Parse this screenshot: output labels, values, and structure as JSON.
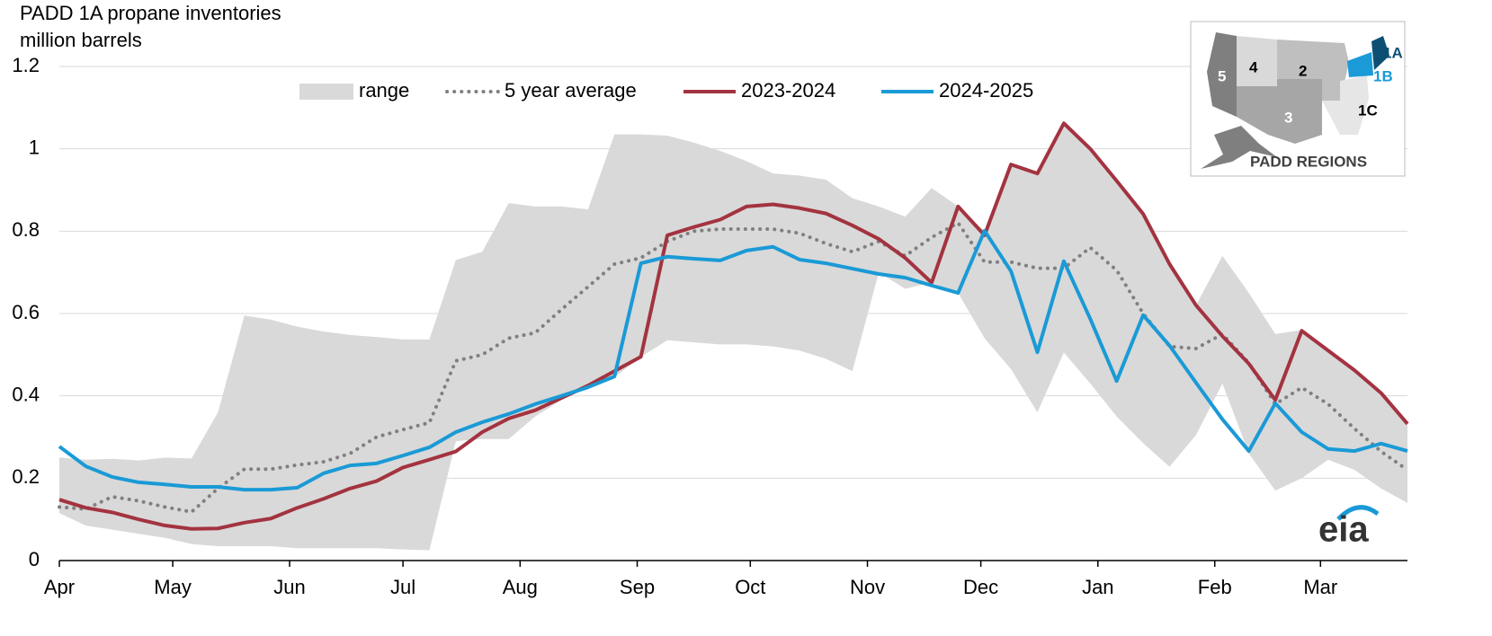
{
  "chart_data": {
    "type": "line",
    "title": "PADD 1A propane inventories",
    "y_label": "million barrels",
    "x": [
      0,
      1,
      2,
      3,
      4,
      5,
      6,
      7,
      8,
      9,
      10,
      11,
      12,
      13,
      14,
      15,
      16,
      17,
      18,
      19,
      20,
      21,
      22,
      23,
      24,
      25,
      26,
      27,
      28,
      29,
      30,
      31,
      32,
      33,
      34,
      35,
      36,
      37,
      38,
      39,
      40,
      41,
      42,
      43,
      44,
      45,
      46,
      47,
      48,
      49,
      50,
      51
    ],
    "xlim": [
      0,
      51
    ],
    "xticks": [
      {
        "value": 0,
        "label": "Apr"
      },
      {
        "value": 4.29,
        "label": "May"
      },
      {
        "value": 8.71,
        "label": "Jun"
      },
      {
        "value": 13,
        "label": "Jul"
      },
      {
        "value": 17.43,
        "label": "Aug"
      },
      {
        "value": 21.86,
        "label": "Sep"
      },
      {
        "value": 26.14,
        "label": "Oct"
      },
      {
        "value": 30.57,
        "label": "Nov"
      },
      {
        "value": 34.86,
        "label": "Dec"
      },
      {
        "value": 39.29,
        "label": "Jan"
      },
      {
        "value": 43.71,
        "label": "Feb"
      },
      {
        "value": 47.71,
        "label": "Mar"
      }
    ],
    "ylim": [
      0,
      1.2
    ],
    "yticks": [
      0,
      0.2,
      0.4,
      0.6,
      0.8,
      1,
      1.2
    ],
    "grid": true,
    "legend": "top",
    "range": {
      "name": "range",
      "color": "#d9d9d9",
      "low": [
        0.115,
        0.085,
        0.075,
        0.065,
        0.055,
        0.04,
        0.035,
        0.035,
        0.035,
        0.03,
        0.03,
        0.03,
        0.03,
        0.027,
        0.025,
        0.29,
        0.295,
        0.295,
        0.35,
        0.39,
        0.42,
        0.445,
        0.495,
        0.535,
        0.53,
        0.525,
        0.525,
        0.52,
        0.51,
        0.49,
        0.46,
        0.7,
        0.66,
        0.675,
        0.65,
        0.54,
        0.465,
        0.36,
        0.505,
        0.43,
        0.35,
        0.285,
        0.228,
        0.305,
        0.43,
        0.26,
        0.17,
        0.2,
        0.245,
        0.22,
        0.175,
        0.14
      ],
      "high": [
        0.25,
        0.245,
        0.247,
        0.243,
        0.25,
        0.248,
        0.36,
        0.595,
        0.585,
        0.568,
        0.556,
        0.548,
        0.543,
        0.537,
        0.537,
        0.73,
        0.75,
        0.868,
        0.86,
        0.86,
        0.853,
        1.035,
        1.035,
        1.032,
        1.015,
        0.995,
        0.97,
        0.94,
        0.935,
        0.925,
        0.88,
        0.86,
        0.835,
        0.905,
        0.86,
        0.8,
        0.962,
        0.94,
        1.062,
        1,
        0.922,
        0.842,
        0.72,
        0.62,
        0.74,
        0.65,
        0.55,
        0.56,
        0.51,
        0.462,
        0.407,
        0.332
      ]
    },
    "series": [
      {
        "name": "5 year average",
        "color": "#808080",
        "style": "dotted",
        "values": [
          0.13,
          0.125,
          0.155,
          0.145,
          0.13,
          0.118,
          0.175,
          0.222,
          0.222,
          0.232,
          0.24,
          0.26,
          0.3,
          0.318,
          0.335,
          0.485,
          0.5,
          0.54,
          0.553,
          0.61,
          0.665,
          0.72,
          0.735,
          0.775,
          0.8,
          0.805,
          0.805,
          0.805,
          0.795,
          0.77,
          0.75,
          0.775,
          0.74,
          0.785,
          0.82,
          0.725,
          0.725,
          0.71,
          0.71,
          0.76,
          0.705,
          0.6,
          0.52,
          0.515,
          0.55,
          0.48,
          0.38,
          0.42,
          0.38,
          0.32,
          0.265,
          0.22
        ]
      },
      {
        "name": "2023-2024",
        "color": "#a33340",
        "style": "solid",
        "values": [
          0.148,
          0.128,
          0.117,
          0.1,
          0.085,
          0.077,
          0.078,
          0.092,
          0.102,
          0.128,
          0.15,
          0.175,
          0.193,
          0.226,
          0.245,
          0.265,
          0.312,
          0.345,
          0.365,
          0.395,
          0.425,
          0.46,
          0.495,
          0.79,
          0.81,
          0.828,
          0.86,
          0.865,
          0.856,
          0.843,
          0.814,
          0.781,
          0.735,
          0.675,
          0.86,
          0.79,
          0.962,
          0.94,
          1.062,
          1,
          0.922,
          0.842,
          0.72,
          0.62,
          0.545,
          0.478,
          0.39,
          0.558,
          0.51,
          0.462,
          0.407,
          0.332
        ]
      },
      {
        "name": "2024-2025",
        "color": "#1a9ad6",
        "style": "solid",
        "values": [
          0.277,
          0.229,
          0.203,
          0.19,
          0.185,
          0.179,
          0.179,
          0.172,
          0.172,
          0.177,
          0.212,
          0.231,
          0.236,
          0.255,
          0.275,
          0.312,
          0.336,
          0.356,
          0.38,
          0.4,
          0.421,
          0.447,
          0.722,
          0.738,
          0.733,
          0.729,
          0.753,
          0.762,
          0.731,
          0.722,
          0.709,
          0.696,
          0.687,
          0.668,
          0.65,
          0.801,
          0.703,
          0.506,
          0.727,
          0.587,
          0.436,
          0.596,
          0.522,
          0.432,
          0.343,
          0.266,
          0.382,
          0.312,
          0.271,
          0.266,
          0.284,
          0.266
        ]
      }
    ],
    "inset": {
      "title": "PADD REGIONS",
      "labels": [
        "1A",
        "1B",
        "1C",
        "2",
        "3",
        "4",
        "5"
      ]
    },
    "logo": "eia"
  }
}
